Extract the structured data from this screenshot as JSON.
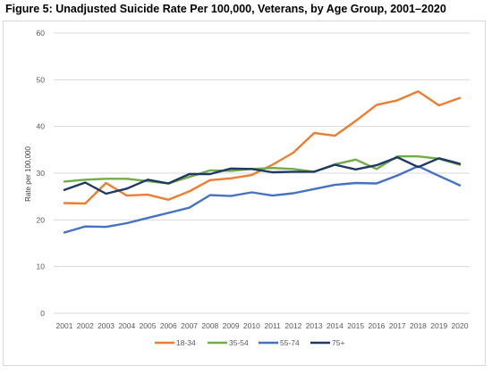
{
  "figure": {
    "title": "Figure 5: Unadjusted Suicide Rate Per 100,000, Veterans, by Age Group, 2001–2020"
  },
  "chart_data": {
    "type": "line",
    "title": "Figure 5: Unadjusted Suicide Rate Per 100,000, Veterans, by Age Group, 2001–2020",
    "xlabel": "",
    "ylabel": "Rate per 100,000",
    "ylim": [
      0,
      60
    ],
    "yticks": [
      "0",
      "10",
      "20",
      "30",
      "40",
      "50",
      "60"
    ],
    "grid": "horizontal",
    "legend_position": "bottom",
    "x": [
      "2001",
      "2002",
      "2003",
      "2004",
      "2005",
      "2006",
      "2007",
      "2008",
      "2009",
      "2010",
      "2011",
      "2012",
      "2013",
      "2014",
      "2015",
      "2016",
      "2017",
      "2018",
      "2019",
      "2020"
    ],
    "series": [
      {
        "name": "18-34",
        "color": "#ed7d31",
        "values": [
          23.6,
          23.5,
          27.9,
          25.2,
          25.4,
          24.3,
          26.1,
          28.5,
          28.9,
          29.6,
          31.8,
          34.4,
          38.6,
          38.0,
          41.2,
          44.6,
          45.6,
          47.5,
          44.5,
          46.1
        ]
      },
      {
        "name": "35-54",
        "color": "#70ad47",
        "values": [
          28.2,
          28.6,
          28.8,
          28.8,
          28.3,
          27.8,
          29.2,
          30.6,
          30.5,
          30.9,
          31.1,
          30.9,
          30.3,
          31.9,
          32.9,
          30.9,
          33.6,
          33.6,
          33.1,
          31.8
        ]
      },
      {
        "name": "55-74",
        "color": "#4472c4",
        "values": [
          17.3,
          18.6,
          18.5,
          19.3,
          20.4,
          21.5,
          22.6,
          25.3,
          25.1,
          25.9,
          25.2,
          25.7,
          26.6,
          27.5,
          27.9,
          27.8,
          29.5,
          31.5,
          29.4,
          27.4
        ]
      },
      {
        "name": "75+",
        "color": "#1f3864",
        "values": [
          26.4,
          28.0,
          25.6,
          26.7,
          28.6,
          27.8,
          29.8,
          29.8,
          31.0,
          30.9,
          30.2,
          30.3,
          30.3,
          31.8,
          30.8,
          31.7,
          33.4,
          31.3,
          33.2,
          32.0
        ]
      }
    ]
  }
}
